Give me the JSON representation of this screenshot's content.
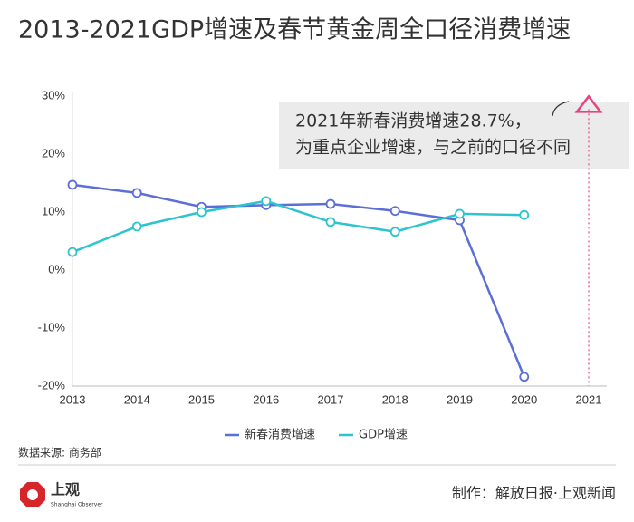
{
  "chart_data": {
    "type": "line",
    "title": "2013-2021GDP增速及春节黄金周全口径消费增速",
    "categories": [
      "2013",
      "2014",
      "2015",
      "2016",
      "2017",
      "2018",
      "2019",
      "2020",
      "2021"
    ],
    "series": [
      {
        "name": "新春消费增速",
        "color": "#5b6fd6",
        "values": [
          14.7,
          13.3,
          10.9,
          11.2,
          11.4,
          10.2,
          8.6,
          -18.4,
          null
        ]
      },
      {
        "name": "GDP增速",
        "color": "#2ec4cf",
        "values": [
          3.1,
          7.5,
          10.0,
          11.9,
          8.3,
          6.6,
          9.7,
          9.5,
          null
        ]
      }
    ],
    "annotation": {
      "value": 28.7,
      "color": "#e5457f",
      "text": [
        "2021年新春消费增速28.7%，",
        "为重点企业增速，与之前的口径不同"
      ]
    },
    "ylim": [
      -20,
      30
    ],
    "yticks": [
      {
        "value": -20,
        "label": "-20%"
      },
      {
        "value": -10,
        "label": "-10%"
      },
      {
        "value": 0,
        "label": "0%"
      },
      {
        "value": 10,
        "label": "10%"
      },
      {
        "value": 20,
        "label": "20%"
      },
      {
        "value": 30,
        "label": "30%"
      }
    ],
    "grid": false,
    "legend": "bottom",
    "source": "数据来源: 商务部",
    "brand": "上观",
    "brand_en": "Shanghai Observer",
    "credit": "制作：解放日报·上观新闻"
  }
}
